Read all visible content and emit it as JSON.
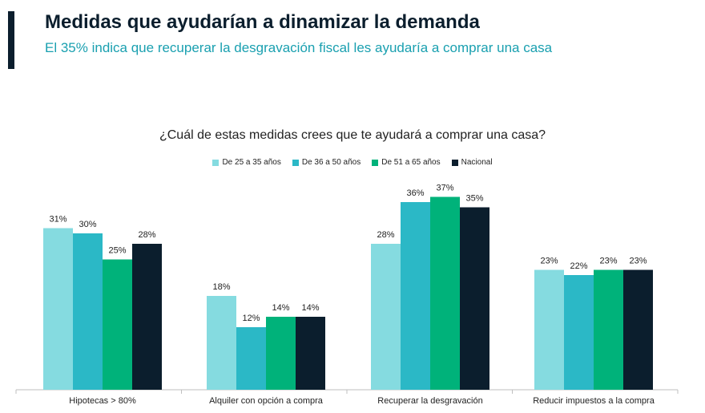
{
  "header": {
    "title": "Medidas que ayudarían a dinamizar la demanda",
    "subtitle": "El 35% indica que recuperar la desgravación fiscal les ayudaría a comprar una casa"
  },
  "colors": {
    "accent_bar": "#0b1e2d",
    "subtitle": "#1aa0b0"
  },
  "chart_data": {
    "type": "bar",
    "title": "¿Cuál de estas medidas crees que te ayudará a comprar una casa?",
    "categories": [
      "Hipotecas > 80%",
      "Alquiler con opción a compra",
      "Recuperar la desgravación",
      "Reducir impuestos a la compra"
    ],
    "series": [
      {
        "name": "De 25 a 35 años",
        "color": "#85dbe0",
        "values": [
          31,
          18,
          28,
          23
        ]
      },
      {
        "name": "De 36 a 50 años",
        "color": "#2bb8c6",
        "values": [
          30,
          12,
          36,
          22
        ]
      },
      {
        "name": "De 51 a 65 años",
        "color": "#00b27a",
        "values": [
          25,
          14,
          37,
          23
        ]
      },
      {
        "name": "Nacional",
        "color": "#0b1e2d",
        "values": [
          28,
          14,
          35,
          23
        ]
      }
    ],
    "value_suffix": "%",
    "ylim": [
      0,
      40
    ],
    "legend_position": "top-center",
    "grid": false
  }
}
